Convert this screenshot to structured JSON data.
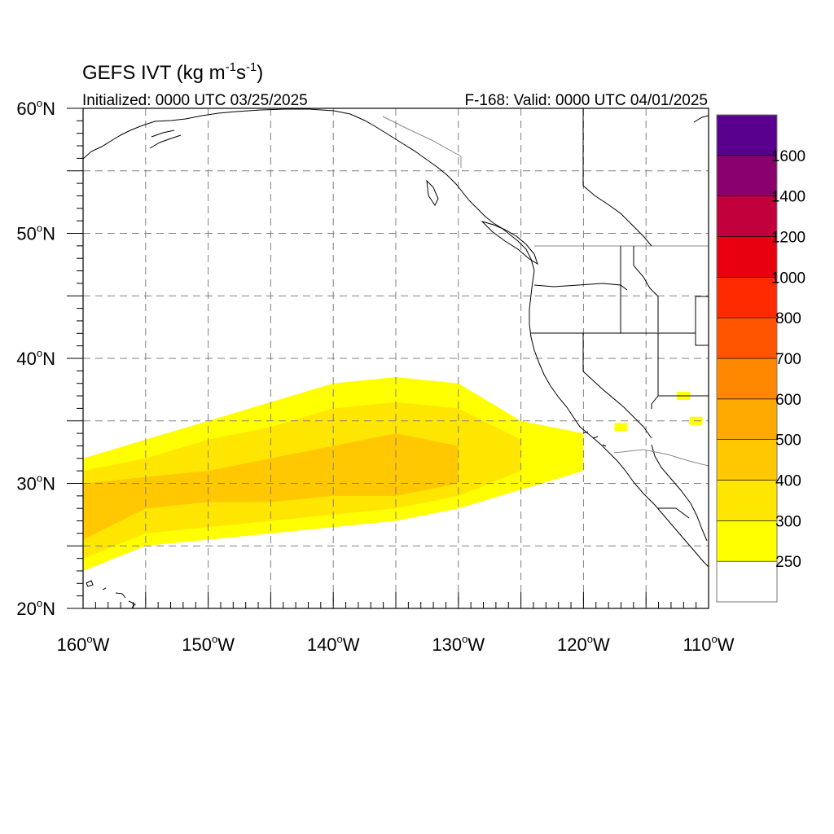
{
  "title": {
    "prefix": "GEFS IVT (kg m",
    "exp1": "-1",
    "mid": "s",
    "exp2": "-1",
    "suffix": ")"
  },
  "initialized": "Initialized: 0000 UTC 03/25/2025",
  "valid": "F-168: Valid: 0000 UTC 04/01/2025",
  "map": {
    "lon_range": [
      -160,
      -110
    ],
    "lat_range": [
      20,
      60
    ],
    "lon_ticks": [
      {
        "value": -160,
        "label": "160",
        "hemi": "W"
      },
      {
        "value": -150,
        "label": "150",
        "hemi": "W"
      },
      {
        "value": -140,
        "label": "140",
        "hemi": "W"
      },
      {
        "value": -130,
        "label": "130",
        "hemi": "W"
      },
      {
        "value": -120,
        "label": "120",
        "hemi": "W"
      },
      {
        "value": -110,
        "label": "110",
        "hemi": "W"
      }
    ],
    "lat_ticks": [
      {
        "value": 20,
        "label": "20",
        "hemi": "N"
      },
      {
        "value": 30,
        "label": "30",
        "hemi": "N"
      },
      {
        "value": 40,
        "label": "40",
        "hemi": "N"
      },
      {
        "value": 50,
        "label": "50",
        "hemi": "N"
      },
      {
        "value": 60,
        "label": "60",
        "hemi": "N"
      }
    ],
    "gridline_spacing_deg": 5,
    "grid": "dashed",
    "degree_symbol": "o"
  },
  "colorbar": {
    "placement": "right",
    "levels": [
      250,
      300,
      400,
      500,
      600,
      700,
      800,
      1000,
      1200,
      1400,
      1600
    ],
    "labels": [
      "250",
      "300",
      "400",
      "500",
      "600",
      "700",
      "800",
      "1000",
      "1200",
      "1400",
      "1600"
    ],
    "colors": [
      "#ffffff",
      "#ffff00",
      "#ffe600",
      "#ffc800",
      "#ffaa00",
      "#ff8800",
      "#ff5500",
      "#ff2a00",
      "#e8000f",
      "#c2003c",
      "#8a006c",
      "#5a008f"
    ]
  },
  "chart_data": {
    "type": "heatmap",
    "variable": "IVT",
    "units": "kg m-1 s-1",
    "shaded_region_axis": "longitude × latitude",
    "ivt_plume": {
      "bands_by_longitude": [
        {
          "lon": -160,
          "lat250": [
            23,
            32
          ],
          "lat300": [
            24,
            31
          ],
          "lat400": [
            25.5,
            30
          ]
        },
        {
          "lon": -155,
          "lat250": [
            25,
            33.5
          ],
          "lat300": [
            26,
            32
          ],
          "lat400": [
            28,
            30.5
          ]
        },
        {
          "lon": -150,
          "lat250": [
            25.5,
            35
          ],
          "lat300": [
            26.5,
            33.5
          ],
          "lat400": [
            28.5,
            31
          ]
        },
        {
          "lon": -145,
          "lat250": [
            26,
            36.5
          ],
          "lat300": [
            27,
            34.5
          ],
          "lat400": [
            28.5,
            32
          ]
        },
        {
          "lon": -140,
          "lat250": [
            26.5,
            38
          ],
          "lat300": [
            27.5,
            36
          ],
          "lat400": [
            29,
            33
          ]
        },
        {
          "lon": -135,
          "lat250": [
            27,
            38.5
          ],
          "lat300": [
            28,
            36.5
          ],
          "lat400": [
            29,
            34
          ]
        },
        {
          "lon": -130,
          "lat250": [
            28,
            38
          ],
          "lat300": [
            29,
            36
          ],
          "lat400": [
            30,
            33
          ]
        },
        {
          "lon": -125,
          "lat250": [
            29.5,
            35
          ],
          "lat300": [
            31,
            33.5
          ],
          "lat400": null
        },
        {
          "lon": -120,
          "lat250": [
            31,
            34
          ],
          "lat300": null,
          "lat400": null
        }
      ],
      "isolated_250_patches": [
        {
          "lon": -117,
          "lat": 34.5
        },
        {
          "lon": -112,
          "lat": 37
        },
        {
          "lon": -111,
          "lat": 35
        }
      ]
    }
  }
}
